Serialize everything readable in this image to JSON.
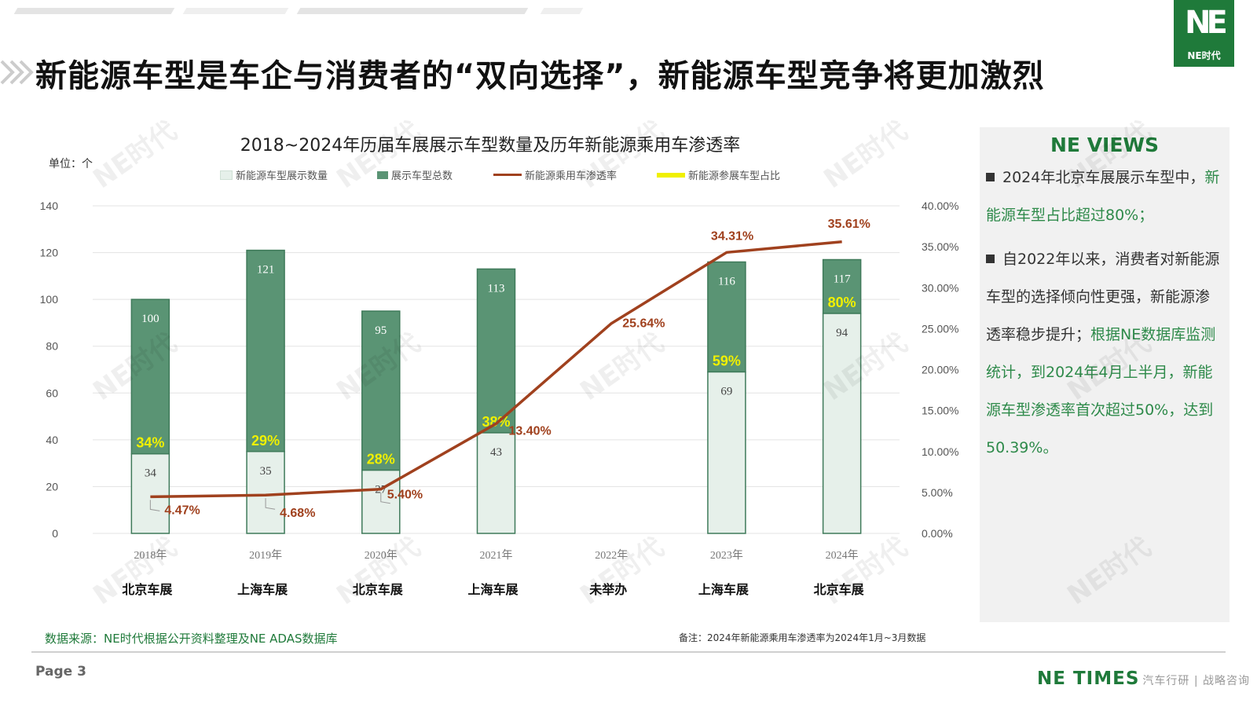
{
  "header": {
    "title": "新能源车型是车企与消费者的“双向选择”，新能源车型竞争将更加激烈",
    "logo_text": "NE时代",
    "logo_mark": "NE"
  },
  "chart_data": {
    "type": "bar",
    "title": "2018~2024年历届车展展示车型数量及历年新能源乘用车渗透率",
    "unit_label": "单位：个",
    "categories": [
      "2018年",
      "2019年",
      "2020年",
      "2021年",
      "2022年",
      "2023年",
      "2024年"
    ],
    "sub_categories": [
      "北京车展",
      "上海车展",
      "北京车展",
      "上海车展",
      "未举办",
      "上海车展",
      "北京车展"
    ],
    "series": [
      {
        "name": "新能源车型展示数量",
        "type": "bar",
        "color": "#e6f0ea",
        "values": [
          34,
          35,
          27,
          43,
          null,
          69,
          94
        ]
      },
      {
        "name": "展示车型总数",
        "type": "bar",
        "color": "#5a9474",
        "values": [
          100,
          121,
          95,
          113,
          null,
          116,
          117
        ]
      },
      {
        "name": "新能源乘用车渗透率",
        "type": "line",
        "axis": "right",
        "color": "#a0411e",
        "values": [
          4.47,
          4.68,
          5.4,
          13.4,
          25.64,
          34.31,
          35.61
        ],
        "labels": [
          "4.47%",
          "4.68%",
          "5.40%",
          "13.40%",
          "25.64%",
          "34.31%",
          "35.61%"
        ]
      },
      {
        "name": "新能源参展车型占比",
        "type": "label",
        "color": "#f0f000",
        "labels": [
          "34%",
          "29%",
          "28%",
          "38%",
          "",
          "59%",
          "80%"
        ]
      }
    ],
    "ylim": [
      0,
      140
    ],
    "yticks": [
      0,
      20,
      40,
      60,
      80,
      100,
      120,
      140
    ],
    "y2lim": [
      0,
      40
    ],
    "y2ticks": [
      "0.00%",
      "5.00%",
      "10.00%",
      "15.00%",
      "20.00%",
      "25.00%",
      "30.00%",
      "35.00%",
      "40.00%"
    ],
    "grid": true,
    "legend_position": "top"
  },
  "panel": {
    "title": "NE VIEWS",
    "bullet1": {
      "plain": "2024年北京车展展示车型中，",
      "highlight": "新能源车型占比超过80%；"
    },
    "bullet2": {
      "plain": "自2022年以来，消费者对新能源车型的选择倾向性更强，新能源渗透率稳步提升；",
      "highlight": "根据NE数据库监测统计，到2024年4月上半月，新能源车型渗透率首次超过50%，达到50.39%。"
    }
  },
  "footer": {
    "source": "数据来源：NE时代根据公开资料整理及NE ADAS数据库",
    "note": "备注：2024年新能源乘用车渗透率为2024年1月~3月数据",
    "page": "Page 3",
    "brand": "NE TIMES",
    "watermark_tail": "汽车行研 | 战略咨询"
  },
  "watermark": "NE时代",
  "colors": {
    "brand_green": "#1f7a3a",
    "bar_dark": "#5a9474",
    "bar_light": "#e6f0ea",
    "line": "#a0411e",
    "pct_label": "#f0f000"
  }
}
